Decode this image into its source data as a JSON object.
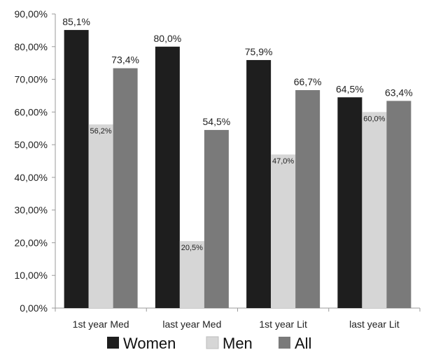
{
  "chart_data": {
    "type": "bar",
    "categories": [
      "1st year Med",
      "last year Med",
      "1st year Lit",
      "last year Lit"
    ],
    "series": [
      {
        "name": "Women",
        "values": [
          85.1,
          80.0,
          75.9,
          64.5
        ],
        "labels": [
          "85,1%",
          "80,0%",
          "75,9%",
          "64,5%"
        ],
        "color": "#1e1e1e"
      },
      {
        "name": "Men",
        "values": [
          56.2,
          20.5,
          47.0,
          60.0
        ],
        "labels": [
          "56,2%",
          "20,5%",
          "47,0%",
          "60,0%"
        ],
        "color": "#d6d6d6"
      },
      {
        "name": "All",
        "values": [
          73.4,
          54.5,
          66.7,
          63.4
        ],
        "labels": [
          "73,4%",
          "54,5%",
          "66,7%",
          "63,4%"
        ],
        "color": "#7a7a7a"
      }
    ],
    "y_ticks": [
      "0,00%",
      "10,00%",
      "20,00%",
      "30,00%",
      "40,00%",
      "50,00%",
      "60,00%",
      "70,00%",
      "80,00%",
      "90,00%"
    ],
    "ylim": [
      0,
      90
    ],
    "grid": false,
    "legend_position": "bottom"
  }
}
